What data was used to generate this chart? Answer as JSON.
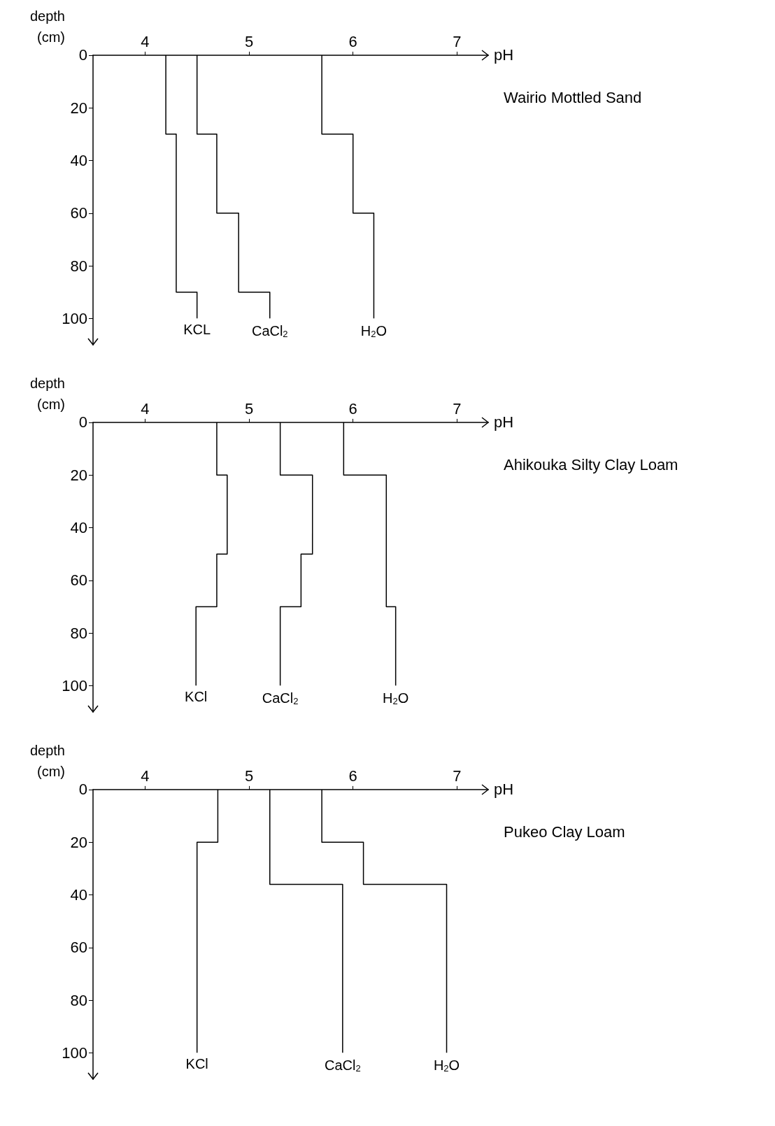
{
  "chart_data": [
    {
      "type": "line",
      "annotations": [
        "Wairio Mottled Sand"
      ],
      "xlabel": "pH",
      "ylabel": "depth (cm)",
      "xlim": [
        3.5,
        7.3
      ],
      "xticks": [
        4,
        5,
        6,
        7
      ],
      "ylim": [
        110,
        0
      ],
      "yticks": [
        0,
        20,
        40,
        60,
        80,
        100
      ],
      "legend": false,
      "grid": false,
      "marker": "none",
      "series": [
        {
          "name": "KCL",
          "color": "#000000",
          "x": [
            4.2,
            4.2,
            4.3,
            4.3,
            4.5,
            4.5
          ],
          "values": [
            0,
            30,
            30,
            90,
            90,
            100
          ]
        },
        {
          "name": "CaCl$_{2}$",
          "color": "#000000",
          "x": [
            4.5,
            4.5,
            4.69,
            4.69,
            4.9,
            4.9,
            5.2,
            5.2
          ],
          "values": [
            0,
            30,
            30,
            60,
            60,
            90,
            90,
            100
          ]
        },
        {
          "name": "H$_{2}$O",
          "color": "#000000",
          "x": [
            5.7,
            5.7,
            6.0,
            6.0,
            6.2,
            6.2
          ],
          "values": [
            0,
            30,
            30,
            60,
            60,
            100
          ]
        }
      ]
    },
    {
      "type": "line",
      "annotations": [
        "Ahikouka Silty Clay Loam"
      ],
      "xlabel": "pH",
      "ylabel": "depth (cm)",
      "xlim": [
        3.5,
        7.3
      ],
      "xticks": [
        4,
        5,
        6,
        7
      ],
      "ylim": [
        110,
        0
      ],
      "yticks": [
        0,
        20,
        40,
        60,
        80,
        100
      ],
      "legend": false,
      "grid": false,
      "marker": "none",
      "series": [
        {
          "name": "KCl",
          "color": "#000000",
          "x": [
            4.69,
            4.69,
            4.79,
            4.79,
            4.69,
            4.69,
            4.49,
            4.49
          ],
          "values": [
            0,
            20,
            20,
            50,
            50,
            70,
            70,
            100
          ]
        },
        {
          "name": "CaCl$_{2}$",
          "color": "#000000",
          "x": [
            5.3,
            5.3,
            5.61,
            5.61,
            5.5,
            5.5,
            5.3,
            5.3
          ],
          "values": [
            0,
            20,
            20,
            50,
            50,
            70,
            70,
            100
          ]
        },
        {
          "name": "H$_{2}$O",
          "color": "#000000",
          "x": [
            5.91,
            5.91,
            6.32,
            6.32,
            6.41,
            6.41
          ],
          "values": [
            0,
            20,
            20,
            70,
            70,
            100
          ]
        }
      ]
    },
    {
      "type": "line",
      "annotations": [
        "Pukeo Clay Loam"
      ],
      "xlabel": "pH",
      "ylabel": "depth (cm)",
      "xlim": [
        3.5,
        7.3
      ],
      "xticks": [
        4,
        5,
        6,
        7
      ],
      "ylim": [
        110,
        0
      ],
      "yticks": [
        0,
        20,
        40,
        60,
        80,
        100
      ],
      "legend": false,
      "grid": false,
      "marker": "none",
      "series": [
        {
          "name": "KCl",
          "color": "#000000",
          "x": [
            4.7,
            4.7,
            4.5,
            4.5
          ],
          "values": [
            0,
            20,
            20,
            100
          ]
        },
        {
          "name": "CaCl$_{2}$",
          "color": "#000000",
          "x": [
            5.2,
            5.2,
            5.9,
            5.9
          ],
          "values": [
            0,
            36,
            36,
            100
          ]
        },
        {
          "name": "H$_{2}$O",
          "color": "#000000",
          "x": [
            5.7,
            5.7,
            6.1,
            6.1,
            6.9,
            6.9
          ],
          "values": [
            0,
            20,
            20,
            36,
            36,
            100
          ]
        }
      ]
    }
  ]
}
